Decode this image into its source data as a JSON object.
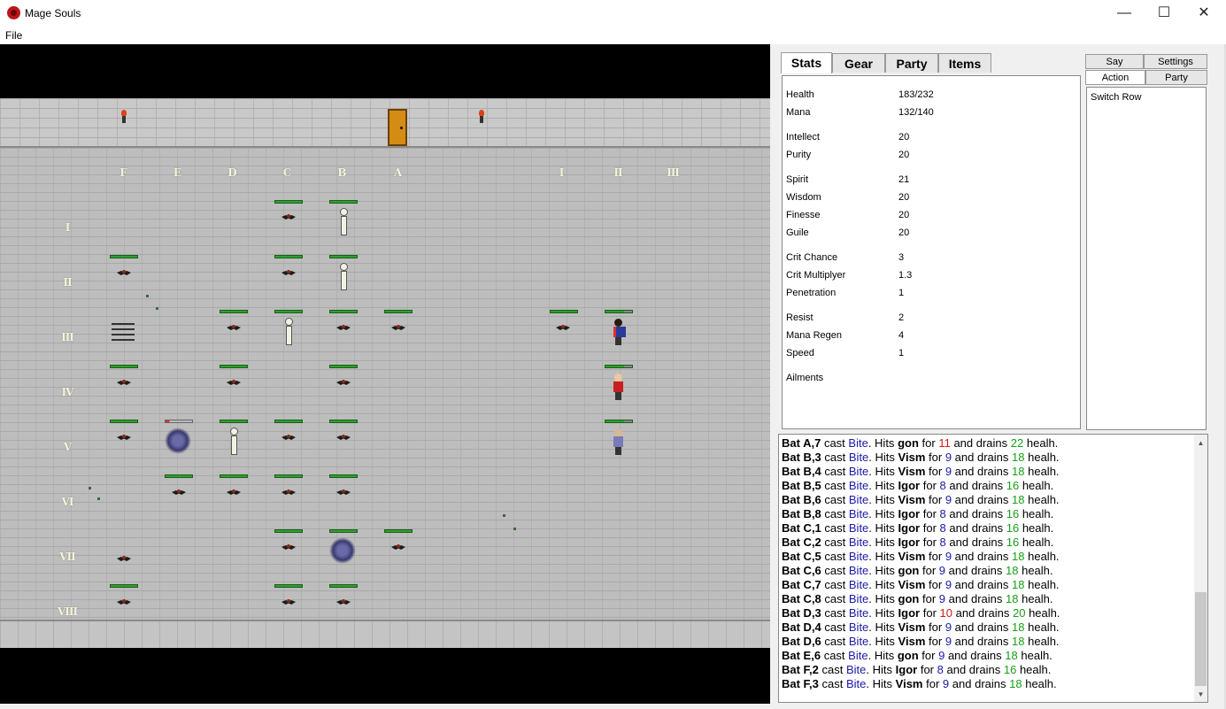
{
  "window": {
    "title": "Mage Souls",
    "minimize": "—",
    "maximize": "☐",
    "close": "✕"
  },
  "menu": {
    "file": "File"
  },
  "game": {
    "column_labels": [
      "F",
      "E",
      "D",
      "C",
      "B",
      "A",
      "I",
      "II",
      "III"
    ],
    "row_labels": [
      "I",
      "II",
      "III",
      "IV",
      "V",
      "VI",
      "VII",
      "VIII"
    ]
  },
  "tabs": {
    "stats": "Stats",
    "gear": "Gear",
    "party": "Party",
    "items": "Items"
  },
  "stats": [
    {
      "label": "Health",
      "value": "183/232"
    },
    {
      "label": "Mana",
      "value": "132/140"
    },
    {
      "label": "Intellect",
      "value": "20"
    },
    {
      "label": "Purity",
      "value": "20"
    },
    {
      "label": "Spirit",
      "value": "21"
    },
    {
      "label": "Wisdom",
      "value": "20"
    },
    {
      "label": "Finesse",
      "value": "20"
    },
    {
      "label": "Guile",
      "value": "20"
    },
    {
      "label": "Crit Chance",
      "value": "3"
    },
    {
      "label": "Crit Multiplyer",
      "value": "1.3"
    },
    {
      "label": "Penetration",
      "value": "1"
    },
    {
      "label": "Resist",
      "value": "2"
    },
    {
      "label": "Mana Regen",
      "value": "4"
    },
    {
      "label": "Speed",
      "value": "1"
    },
    {
      "label": "Ailments",
      "value": ""
    }
  ],
  "action_tabs": {
    "say": "Say",
    "settings": "Settings",
    "action": "Action",
    "party": "Party"
  },
  "actions": {
    "switch_row": "Switch Row"
  },
  "log": {
    "words": {
      "cast": "cast",
      "hits": "Hits",
      "for": "for",
      "and_drains": "and drains",
      "healh": "healh."
    },
    "entries": [
      {
        "caster": "Bat A,7",
        "spell": "Bite",
        "target": "gon",
        "damage": "11",
        "drain": "22",
        "crit": true
      },
      {
        "caster": "Bat B,3",
        "spell": "Bite",
        "target": "Vism",
        "damage": "9",
        "drain": "18",
        "crit": false
      },
      {
        "caster": "Bat B,4",
        "spell": "Bite",
        "target": "Vism",
        "damage": "9",
        "drain": "18",
        "crit": false
      },
      {
        "caster": "Bat B,5",
        "spell": "Bite",
        "target": "Igor",
        "damage": "8",
        "drain": "16",
        "crit": false
      },
      {
        "caster": "Bat B,6",
        "spell": "Bite",
        "target": "Vism",
        "damage": "9",
        "drain": "18",
        "crit": false
      },
      {
        "caster": "Bat B,8",
        "spell": "Bite",
        "target": "Igor",
        "damage": "8",
        "drain": "16",
        "crit": false
      },
      {
        "caster": "Bat C,1",
        "spell": "Bite",
        "target": "Igor",
        "damage": "8",
        "drain": "16",
        "crit": false
      },
      {
        "caster": "Bat C,2",
        "spell": "Bite",
        "target": "Igor",
        "damage": "8",
        "drain": "16",
        "crit": false
      },
      {
        "caster": "Bat C,5",
        "spell": "Bite",
        "target": "Vism",
        "damage": "9",
        "drain": "18",
        "crit": false
      },
      {
        "caster": "Bat C,6",
        "spell": "Bite",
        "target": "gon",
        "damage": "9",
        "drain": "18",
        "crit": false
      },
      {
        "caster": "Bat C,7",
        "spell": "Bite",
        "target": "Vism",
        "damage": "9",
        "drain": "18",
        "crit": false
      },
      {
        "caster": "Bat C,8",
        "spell": "Bite",
        "target": "gon",
        "damage": "9",
        "drain": "18",
        "crit": false
      },
      {
        "caster": "Bat D,3",
        "spell": "Bite",
        "target": "Igor",
        "damage": "10",
        "drain": "20",
        "crit": true
      },
      {
        "caster": "Bat D,4",
        "spell": "Bite",
        "target": "Vism",
        "damage": "9",
        "drain": "18",
        "crit": false
      },
      {
        "caster": "Bat D,6",
        "spell": "Bite",
        "target": "Vism",
        "damage": "9",
        "drain": "18",
        "crit": false
      },
      {
        "caster": "Bat E,6",
        "spell": "Bite",
        "target": "gon",
        "damage": "9",
        "drain": "18",
        "crit": false
      },
      {
        "caster": "Bat F,2",
        "spell": "Bite",
        "target": "Igor",
        "damage": "8",
        "drain": "16",
        "crit": false
      },
      {
        "caster": "Bat F,3",
        "spell": "Bite",
        "target": "Vism",
        "damage": "9",
        "drain": "18",
        "crit": false
      }
    ]
  }
}
